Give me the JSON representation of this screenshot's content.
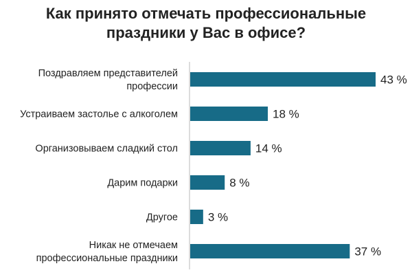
{
  "chart_data": {
    "type": "bar",
    "orientation": "horizontal",
    "title_lines": [
      "Как принято отмечать профессиональные",
      "праздники у Вас в офисе?"
    ],
    "categories": [
      [
        "Поздравляем представителей",
        "профессии"
      ],
      [
        "Устраиваем застолье с алкоголем"
      ],
      [
        "Организовываем сладкий стол"
      ],
      [
        "Дарим подарки"
      ],
      [
        "Другое"
      ],
      [
        "Никак не отмечаем",
        "профессиональные праздники"
      ]
    ],
    "values": [
      43,
      18,
      14,
      8,
      3,
      37
    ],
    "value_labels": [
      "43 %",
      "18 %",
      "14 %",
      "8 %",
      "3 %",
      "37 %"
    ],
    "unit": "%",
    "bar_color": "#176b87",
    "axis_color": "#b8b8b8",
    "xlim": [
      0,
      43
    ],
    "grid": false,
    "legend": "none"
  }
}
